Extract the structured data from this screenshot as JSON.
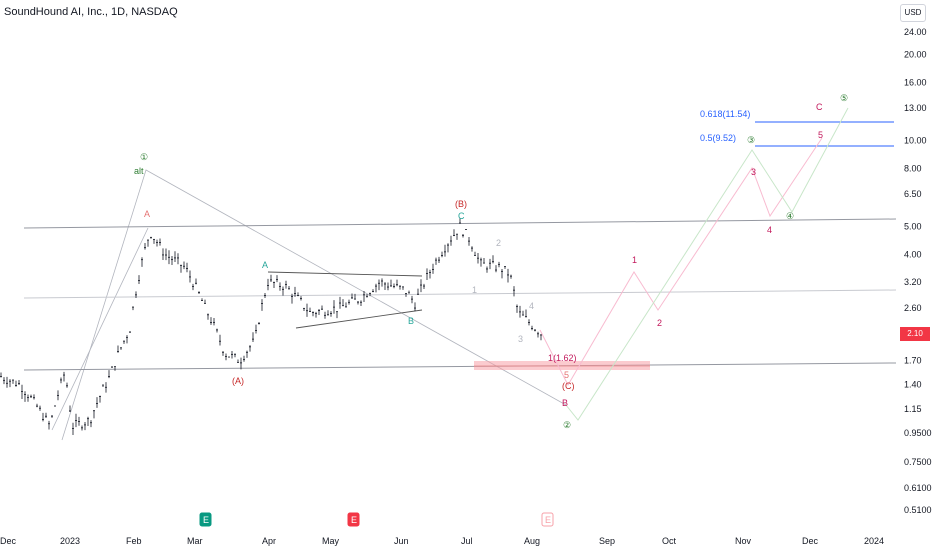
{
  "title": "SoundHound AI, Inc., 1D, NASDAQ",
  "currency": "USD",
  "last_price": "2.10",
  "chart_data": {
    "type": "candlestick",
    "y_scale": "log",
    "x_tick_labels": [
      "Dec",
      "2023",
      "Feb",
      "Mar",
      "Apr",
      "May",
      "Jun",
      "Jul",
      "Aug",
      "Sep",
      "Oct",
      "Nov",
      "Dec",
      "2024"
    ],
    "y_tick_labels": [
      "24.00",
      "20.00",
      "16.00",
      "13.00",
      "10.00",
      "8.00",
      "6.50",
      "5.00",
      "4.00",
      "3.20",
      "2.60",
      "2.10",
      "1.70",
      "1.40",
      "1.15",
      "0.9500",
      "0.7500",
      "0.6100",
      "0.5100"
    ],
    "fib_levels": [
      {
        "label": "0.618(11.54)",
        "value": 11.54
      },
      {
        "label": "0.5(9.52)",
        "value": 9.52
      }
    ],
    "zone_label": "1(1.62)",
    "wave_labels": [
      "①",
      "alt",
      "A",
      "(A)",
      "A",
      "B",
      "(B)",
      "C",
      "1",
      "2",
      "3",
      "4",
      "5",
      "(C)",
      "B",
      "②",
      "1",
      "2",
      "3",
      "4",
      "③",
      "④",
      "5",
      "C",
      "⑤"
    ],
    "event_markers": [
      "E",
      "E",
      "E"
    ]
  }
}
